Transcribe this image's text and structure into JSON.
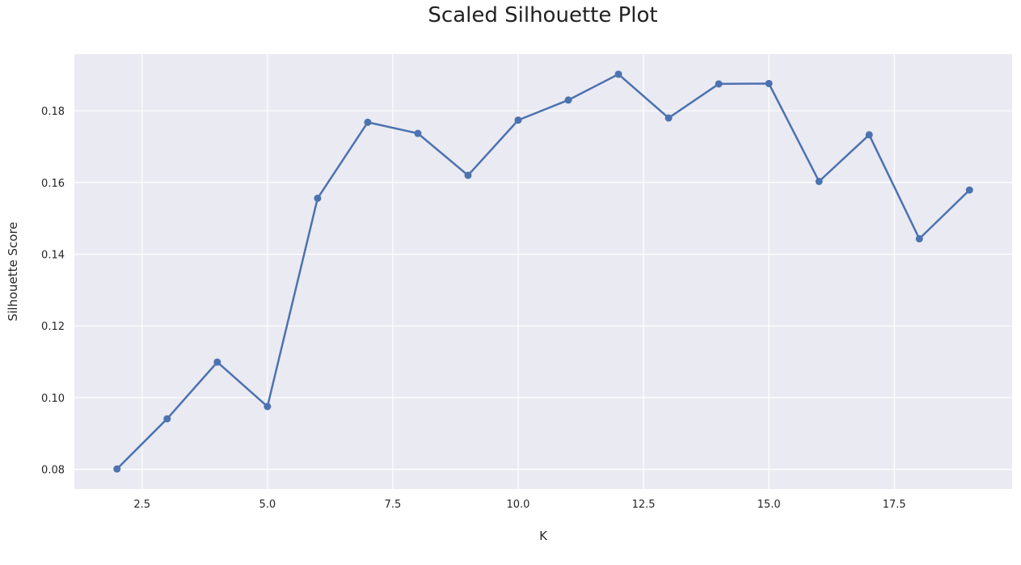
{
  "chart_data": {
    "type": "line",
    "title": "Scaled Silhouette Plot",
    "xlabel": "K",
    "ylabel": "Silhouette Score",
    "x": [
      2,
      3,
      4,
      5,
      6,
      7,
      8,
      9,
      10,
      11,
      12,
      13,
      14,
      15,
      16,
      17,
      18,
      19
    ],
    "series": [
      {
        "values": [
          0.0801,
          0.0941,
          0.1099,
          0.0975,
          0.1556,
          0.1768,
          0.1737,
          0.162,
          0.1774,
          0.183,
          0.1902,
          0.178,
          0.1875,
          0.1876,
          0.1603,
          0.1733,
          0.1443,
          0.1579
        ],
        "color": "#4c72b0",
        "marker": "circle"
      }
    ],
    "xlim": [
      1.15,
      19.85
    ],
    "ylim": [
      0.0745,
      0.1958
    ],
    "xticks": [
      2.5,
      5.0,
      7.5,
      10.0,
      12.5,
      15.0,
      17.5
    ],
    "xtick_labels": [
      "2.5",
      "5.0",
      "7.5",
      "10.0",
      "12.5",
      "15.0",
      "17.5"
    ],
    "yticks": [
      0.08,
      0.1,
      0.12,
      0.14,
      0.16,
      0.18
    ],
    "ytick_labels": [
      "0.08",
      "0.10",
      "0.12",
      "0.14",
      "0.16",
      "0.18"
    ],
    "grid": true,
    "background": "#eaeaf2",
    "grid_color": "#ffffff"
  }
}
